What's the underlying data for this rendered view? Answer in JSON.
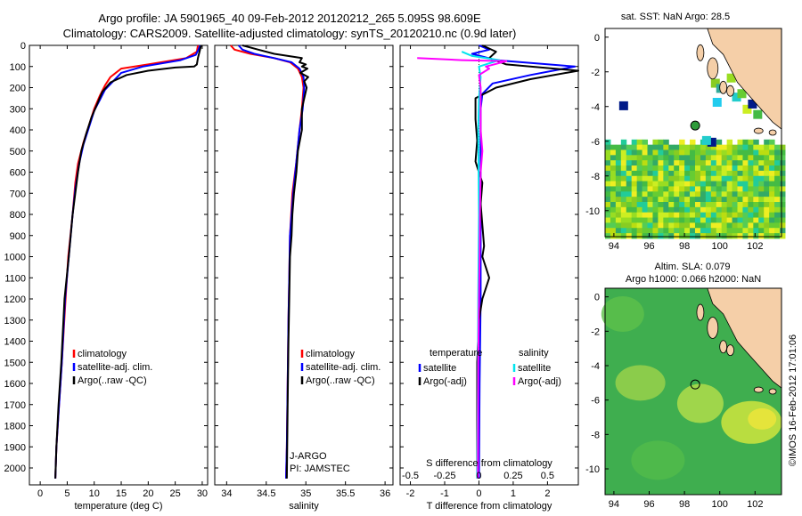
{
  "title": {
    "line1": "Argo profile: JA 5901965_40 09-Feb-2012 20120212_265 5.095S 98.609E",
    "line2": "Climatology: CARS2009. Satellite-adjusted climatology: synTS_20120210.nc (0.9d later)"
  },
  "colors": {
    "climatology": "#ff0000",
    "satellite": "#0000ff",
    "argo": "#000000",
    "sal_satellite": "#00e5ee",
    "sal_argo": "#ff00ff",
    "land": "#f5cfa8"
  },
  "chart_data": [
    {
      "type": "line",
      "name": "temperature-profile",
      "xlabel": "temperature (deg C)",
      "ylabel": "",
      "xlim": [
        -2,
        31
      ],
      "ylim": [
        0,
        2080
      ],
      "y_inverted": true,
      "xticks": [
        0,
        5,
        10,
        15,
        20,
        25,
        30
      ],
      "yticks": [
        0,
        100,
        200,
        300,
        400,
        500,
        600,
        700,
        800,
        900,
        1000,
        1100,
        1200,
        1300,
        1400,
        1500,
        1600,
        1700,
        1800,
        1900,
        2000
      ],
      "legend": [
        "climatology",
        "satellite-adj. clim.",
        "Argo(..raw -QC)"
      ],
      "series": [
        {
          "name": "climatology",
          "color": "#ff0000",
          "points": [
            [
              29.2,
              0
            ],
            [
              29,
              30
            ],
            [
              27,
              60
            ],
            [
              20,
              90
            ],
            [
              15,
              110
            ],
            [
              13,
              150
            ],
            [
              12,
              190
            ],
            [
              11,
              240
            ],
            [
              10,
              300
            ],
            [
              9,
              380
            ],
            [
              8,
              460
            ],
            [
              7,
              560
            ],
            [
              6.5,
              650
            ],
            [
              6,
              800
            ],
            [
              5.2,
              1000
            ],
            [
              4.7,
              1200
            ],
            [
              4,
              1500
            ],
            [
              3.5,
              1700
            ],
            [
              3,
              1900
            ],
            [
              2.8,
              2050
            ]
          ]
        },
        {
          "name": "satellite-adj. clim.",
          "color": "#0000ff",
          "points": [
            [
              29.6,
              0
            ],
            [
              29.3,
              20
            ],
            [
              28.8,
              45
            ],
            [
              26,
              70
            ],
            [
              19,
              100
            ],
            [
              15,
              130
            ],
            [
              13.5,
              170
            ],
            [
              12,
              210
            ],
            [
              11,
              260
            ],
            [
              10,
              310
            ],
            [
              9,
              390
            ],
            [
              8,
              470
            ],
            [
              7.2,
              560
            ],
            [
              6.5,
              680
            ],
            [
              6,
              800
            ],
            [
              5.3,
              1000
            ],
            [
              4.6,
              1200
            ],
            [
              4,
              1500
            ],
            [
              3.5,
              1700
            ],
            [
              3,
              1900
            ],
            [
              2.8,
              2050
            ]
          ]
        },
        {
          "name": "Argo(..raw -QC)",
          "color": "#000000",
          "points": [
            [
              29.8,
              0
            ],
            [
              29.5,
              30
            ],
            [
              29.2,
              60
            ],
            [
              29,
              90
            ],
            [
              28.5,
              100
            ],
            [
              25,
              105
            ],
            [
              20,
              120
            ],
            [
              16,
              140
            ],
            [
              13,
              175
            ],
            [
              11.5,
              220
            ],
            [
              10.5,
              280
            ],
            [
              9.5,
              340
            ],
            [
              8.5,
              420
            ],
            [
              7.6,
              500
            ],
            [
              7,
              600
            ],
            [
              6.5,
              700
            ],
            [
              6,
              800
            ],
            [
              5.3,
              1000
            ],
            [
              4.5,
              1200
            ],
            [
              3.9,
              1500
            ],
            [
              3.4,
              1700
            ],
            [
              3,
              1900
            ],
            [
              2.8,
              2050
            ]
          ]
        }
      ]
    },
    {
      "type": "line",
      "name": "salinity-profile",
      "xlabel": "salinity",
      "xlim": [
        33.85,
        36.1
      ],
      "ylim": [
        0,
        2080
      ],
      "y_inverted": true,
      "xticks": [
        34,
        34.5,
        35,
        35.5,
        36
      ],
      "legend": [
        "climatology",
        "satellite-adj. clim.",
        "Argo(..raw -QC)"
      ],
      "annotations": [
        "J-ARGO",
        "PI: JAMSTEC"
      ],
      "series": [
        {
          "name": "climatology",
          "color": "#ff0000",
          "points": [
            [
              34.05,
              0
            ],
            [
              34.1,
              20
            ],
            [
              34.3,
              40
            ],
            [
              34.6,
              60
            ],
            [
              34.8,
              80
            ],
            [
              34.9,
              110
            ],
            [
              34.95,
              150
            ],
            [
              34.97,
              200
            ],
            [
              34.95,
              300
            ],
            [
              34.92,
              400
            ],
            [
              34.88,
              550
            ],
            [
              34.83,
              700
            ],
            [
              34.8,
              900
            ],
            [
              34.79,
              1100
            ],
            [
              34.78,
              1300
            ],
            [
              34.77,
              1600
            ],
            [
              34.76,
              1900
            ],
            [
              34.75,
              2050
            ]
          ]
        },
        {
          "name": "satellite-adj. clim.",
          "color": "#0000ff",
          "points": [
            [
              34.15,
              0
            ],
            [
              34.2,
              20
            ],
            [
              34.35,
              40
            ],
            [
              34.6,
              60
            ],
            [
              34.82,
              80
            ],
            [
              34.92,
              110
            ],
            [
              34.97,
              150
            ],
            [
              34.98,
              200
            ],
            [
              34.96,
              300
            ],
            [
              34.92,
              400
            ],
            [
              34.88,
              550
            ],
            [
              34.84,
              700
            ],
            [
              34.8,
              900
            ],
            [
              34.79,
              1100
            ],
            [
              34.78,
              1300
            ],
            [
              34.77,
              1600
            ],
            [
              34.76,
              1900
            ],
            [
              34.75,
              2050
            ]
          ]
        },
        {
          "name": "Argo(..raw -QC)",
          "color": "#000000",
          "points": [
            [
              34.2,
              0
            ],
            [
              34.4,
              20
            ],
            [
              34.6,
              40
            ],
            [
              34.95,
              60
            ],
            [
              34.92,
              80
            ],
            [
              35.0,
              90
            ],
            [
              34.95,
              100
            ],
            [
              35.02,
              110
            ],
            [
              34.93,
              130
            ],
            [
              35.03,
              150
            ],
            [
              34.98,
              170
            ],
            [
              35.01,
              200
            ],
            [
              34.95,
              300
            ],
            [
              34.95,
              400
            ],
            [
              34.9,
              500
            ],
            [
              34.88,
              600
            ],
            [
              34.85,
              700
            ],
            [
              34.83,
              800
            ],
            [
              34.82,
              900
            ],
            [
              34.8,
              1000
            ],
            [
              34.79,
              1200
            ],
            [
              34.78,
              1400
            ],
            [
              34.77,
              1700
            ],
            [
              34.76,
              2050
            ]
          ]
        }
      ]
    },
    {
      "type": "line",
      "name": "difference-profile",
      "xlabel": "T difference from climatology",
      "top_axis_label": "S difference from climatology",
      "xlim": [
        -2.3,
        2.9
      ],
      "ylim": [
        0,
        2080
      ],
      "y_inverted": true,
      "xticks": [
        -2,
        -1,
        0,
        1,
        2
      ],
      "s_ticks": [
        -0.5,
        -0.25,
        0,
        0.25,
        0.5
      ],
      "legend_headers": [
        "temperature",
        "salinity"
      ],
      "legend": [
        "satellite",
        "Argo(-adj)",
        "satellite",
        "Argo(-adj)"
      ],
      "series": [
        {
          "name": "T satellite",
          "color": "#0000ff",
          "points": [
            [
              0,
              0
            ],
            [
              0.3,
              20
            ],
            [
              -0.2,
              40
            ],
            [
              0.5,
              70
            ],
            [
              2.8,
              100
            ],
            [
              1.5,
              140
            ],
            [
              0.4,
              180
            ],
            [
              0.1,
              230
            ],
            [
              0.05,
              300
            ],
            [
              0.05,
              500
            ],
            [
              0.05,
              800
            ],
            [
              0.05,
              1200
            ],
            [
              0.02,
              1600
            ],
            [
              0,
              2050
            ]
          ]
        },
        {
          "name": "T Argo(-adj)",
          "color": "#000000",
          "points": [
            [
              0.1,
              0
            ],
            [
              0.5,
              30
            ],
            [
              0.3,
              60
            ],
            [
              0.8,
              90
            ],
            [
              2.9,
              120
            ],
            [
              1.5,
              160
            ],
            [
              0.5,
              200
            ],
            [
              -0.1,
              250
            ],
            [
              -0.1,
              350
            ],
            [
              -0.05,
              450
            ],
            [
              -0.1,
              550
            ],
            [
              0.1,
              650
            ],
            [
              0.05,
              750
            ],
            [
              0.1,
              850
            ],
            [
              0.15,
              950
            ],
            [
              0.1,
              1000
            ],
            [
              0.2,
              1050
            ],
            [
              0.3,
              1100
            ],
            [
              0.1,
              1200
            ],
            [
              0.0,
              1300
            ],
            [
              -0.05,
              1500
            ],
            [
              -0.05,
              1800
            ],
            [
              -0.05,
              2050
            ]
          ]
        },
        {
          "name": "S satellite",
          "color": "#00e5ee",
          "points": [
            [
              -0.5,
              30
            ],
            [
              -0.2,
              50
            ],
            [
              0.6,
              70
            ],
            [
              0,
              100
            ],
            [
              0.05,
              150
            ],
            [
              0,
              250
            ],
            [
              -0.02,
              400
            ],
            [
              0,
              800
            ],
            [
              -0.02,
              1200
            ],
            [
              -0.03,
              1600
            ],
            [
              -0.05,
              2050
            ]
          ]
        },
        {
          "name": "S Argo(-adj)",
          "color": "#ff00ff",
          "points": [
            [
              -1.8,
              60
            ],
            [
              -0.5,
              70
            ],
            [
              0.8,
              75
            ],
            [
              0.2,
              100
            ],
            [
              0.3,
              110
            ],
            [
              0.0,
              140
            ],
            [
              0.05,
              200
            ],
            [
              0.05,
              300
            ],
            [
              0.05,
              400
            ],
            [
              0.1,
              500
            ],
            [
              0.05,
              600
            ],
            [
              0.03,
              800
            ],
            [
              0.02,
              1000
            ],
            [
              0,
              1200
            ],
            [
              -0.02,
              1500
            ],
            [
              -0.03,
              2050
            ]
          ]
        }
      ]
    },
    {
      "type": "heatmap",
      "name": "sst-map",
      "title": "sat. SST: NaN Argo: 28.5",
      "xlim": [
        93.5,
        103.5
      ],
      "ylim": [
        -11.5,
        0.5
      ],
      "xticks": [
        94,
        96,
        98,
        100,
        102
      ],
      "yticks": [
        0,
        -2,
        -4,
        -6,
        -8,
        -10
      ],
      "argo_position": [
        98.609,
        -5.095
      ]
    },
    {
      "type": "heatmap",
      "name": "sla-map",
      "title_line1": "Altim. SLA: 0.079",
      "title_line2": "Argo h1000: 0.066 h2000: NaN",
      "xlim": [
        93.5,
        103.5
      ],
      "ylim": [
        -11.5,
        0.5
      ],
      "xticks": [
        94,
        96,
        98,
        100,
        102
      ],
      "yticks": [
        0,
        -2,
        -4,
        -6,
        -8,
        -10
      ],
      "argo_position": [
        98.609,
        -5.095
      ]
    }
  ],
  "footer": {
    "watermark": "©IMOS 16-Feb-2012 17:01:06"
  }
}
